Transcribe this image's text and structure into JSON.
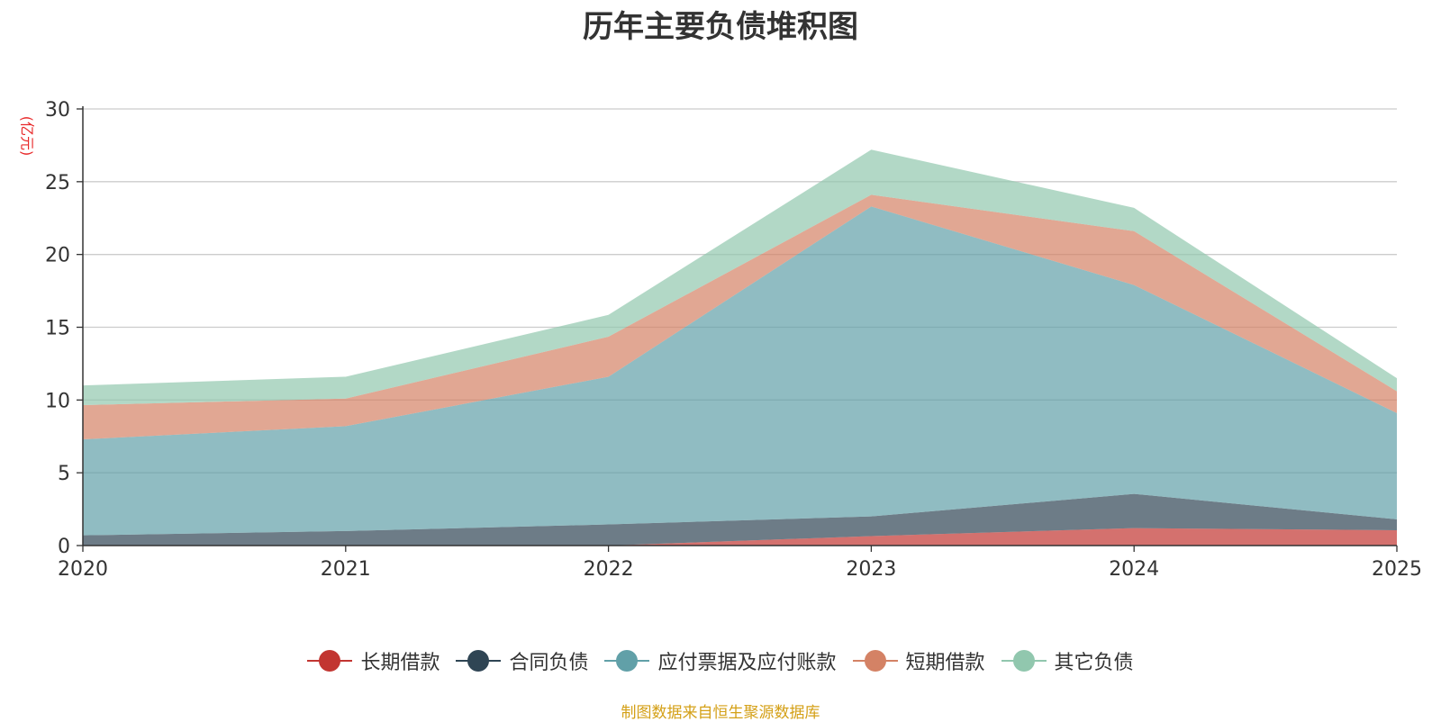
{
  "chart_data": {
    "type": "area",
    "stacked": true,
    "title": "历年主要负债堆积图",
    "ylabel": "(亿元)",
    "xlabel": "",
    "ylim": [
      0,
      30
    ],
    "yticks": [
      0,
      5,
      10,
      15,
      20,
      25,
      30
    ],
    "categories": [
      "2020",
      "2021",
      "2022",
      "2023",
      "2024",
      "2025"
    ],
    "grid": true,
    "legend_position": "bottom",
    "series": [
      {
        "name": "长期借款",
        "color": "#c23531",
        "values": [
          0.0,
          0.0,
          0.0,
          0.65,
          1.2,
          1.05
        ]
      },
      {
        "name": "合同负债",
        "color": "#2f4554",
        "values": [
          0.7,
          1.0,
          1.45,
          1.35,
          2.35,
          0.75
        ]
      },
      {
        "name": "应付票据及应付账款",
        "color": "#61a0a8",
        "values": [
          6.6,
          7.2,
          10.15,
          21.3,
          14.35,
          7.3
        ]
      },
      {
        "name": "短期借款",
        "color": "#d48265",
        "values": [
          2.35,
          1.9,
          2.75,
          0.8,
          3.7,
          1.5
        ]
      },
      {
        "name": "其它负债",
        "color": "#91c7ae",
        "values": [
          1.35,
          1.5,
          1.5,
          3.1,
          1.6,
          0.9
        ]
      }
    ]
  },
  "source_note": "制图数据来自恒生聚源数据库",
  "colors": {
    "title": "#333333",
    "unit": "#e8292a",
    "source": "#d4a017",
    "axis": "#333333",
    "grid": "#cccccc"
  }
}
